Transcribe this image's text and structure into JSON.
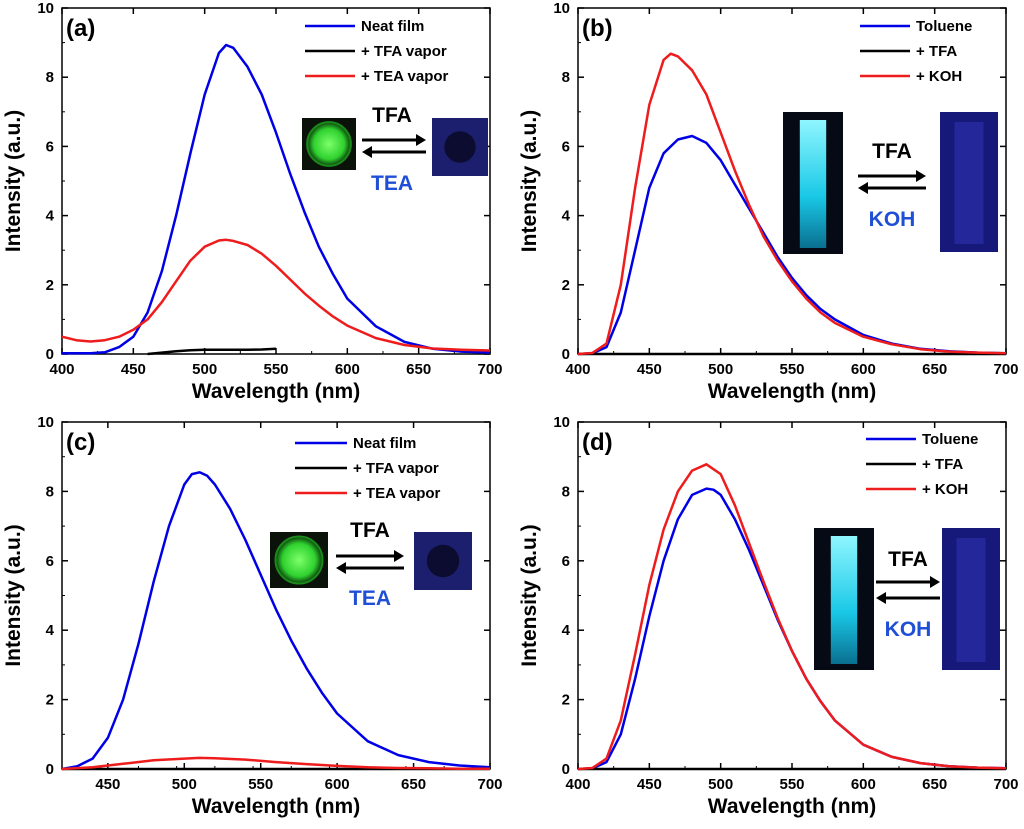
{
  "chart_data": [
    {
      "panel": "(a)",
      "type": "line",
      "xlabel": "Wavelength (nm)",
      "ylabel": "Intensity (a.u.)",
      "xlim": [
        400,
        700
      ],
      "ylim": [
        0,
        10
      ],
      "xticks": [
        400,
        450,
        500,
        550,
        600,
        650,
        700
      ],
      "yticks": [
        0,
        2,
        4,
        6,
        8,
        10
      ],
      "legend_position": "top-right",
      "series": [
        {
          "name": "Neat film",
          "color": "#0000e6",
          "x": [
            400,
            420,
            430,
            440,
            450,
            460,
            470,
            480,
            490,
            500,
            510,
            515,
            520,
            530,
            540,
            550,
            560,
            570,
            580,
            590,
            600,
            620,
            640,
            660,
            680,
            700
          ],
          "y": [
            0.02,
            0.02,
            0.05,
            0.2,
            0.5,
            1.2,
            2.4,
            4.0,
            5.8,
            7.5,
            8.7,
            8.93,
            8.85,
            8.3,
            7.5,
            6.4,
            5.2,
            4.1,
            3.1,
            2.3,
            1.6,
            0.8,
            0.35,
            0.15,
            0.07,
            0.04
          ]
        },
        {
          "name": "+ TFA vapor",
          "color": "#000000",
          "x": [
            460,
            470,
            480,
            490,
            500,
            510,
            520,
            530,
            540,
            550
          ],
          "y": [
            0.0,
            0.04,
            0.08,
            0.11,
            0.12,
            0.12,
            0.12,
            0.12,
            0.13,
            0.15
          ]
        },
        {
          "name": "+ TEA vapor",
          "color": "#ee1c1c",
          "x": [
            400,
            410,
            420,
            430,
            440,
            450,
            460,
            470,
            480,
            490,
            500,
            510,
            515,
            520,
            530,
            540,
            550,
            560,
            570,
            580,
            590,
            600,
            620,
            640,
            660,
            680,
            700
          ],
          "y": [
            0.5,
            0.4,
            0.36,
            0.4,
            0.5,
            0.7,
            1.0,
            1.5,
            2.1,
            2.7,
            3.1,
            3.28,
            3.3,
            3.27,
            3.15,
            2.9,
            2.55,
            2.15,
            1.75,
            1.4,
            1.08,
            0.82,
            0.46,
            0.26,
            0.16,
            0.12,
            0.1
          ]
        }
      ],
      "inset": {
        "top_label": "TFA",
        "bottom_label": "TEA"
      }
    },
    {
      "panel": "(b)",
      "type": "line",
      "xlabel": "Wavelength (nm)",
      "ylabel": "Intensity (a.u.)",
      "xlim": [
        400,
        700
      ],
      "ylim": [
        0,
        10
      ],
      "xticks": [
        400,
        450,
        500,
        550,
        600,
        650,
        700
      ],
      "yticks": [
        0,
        2,
        4,
        6,
        8,
        10
      ],
      "legend_position": "top-right",
      "series": [
        {
          "name": "Toluene",
          "color": "#0000e6",
          "x": [
            400,
            410,
            420,
            430,
            440,
            450,
            460,
            470,
            480,
            490,
            500,
            510,
            520,
            530,
            540,
            550,
            560,
            570,
            580,
            600,
            620,
            640,
            660,
            680,
            700
          ],
          "y": [
            0.0,
            0.02,
            0.2,
            1.2,
            3.0,
            4.8,
            5.8,
            6.2,
            6.3,
            6.1,
            5.6,
            4.9,
            4.2,
            3.5,
            2.8,
            2.2,
            1.7,
            1.3,
            1.0,
            0.55,
            0.3,
            0.15,
            0.08,
            0.04,
            0.02
          ]
        },
        {
          "name": "+ TFA",
          "color": "#000000",
          "x": [
            400,
            700
          ],
          "y": [
            0.0,
            0.0
          ]
        },
        {
          "name": "+ KOH",
          "color": "#ee1c1c",
          "x": [
            400,
            410,
            420,
            430,
            440,
            450,
            460,
            465,
            470,
            480,
            490,
            500,
            510,
            520,
            530,
            540,
            550,
            560,
            570,
            580,
            600,
            620,
            640,
            660,
            680,
            700
          ],
          "y": [
            0.0,
            0.03,
            0.3,
            2.0,
            4.8,
            7.2,
            8.5,
            8.68,
            8.6,
            8.2,
            7.5,
            6.4,
            5.3,
            4.3,
            3.4,
            2.7,
            2.1,
            1.6,
            1.2,
            0.9,
            0.5,
            0.28,
            0.14,
            0.07,
            0.04,
            0.02
          ]
        }
      ],
      "inset": {
        "top_label": "TFA",
        "bottom_label": "KOH"
      }
    },
    {
      "panel": "(c)",
      "type": "line",
      "xlabel": "Wavelength (nm)",
      "ylabel": "Intensity (a.u.)",
      "xlim": [
        420,
        700
      ],
      "ylim": [
        0,
        10
      ],
      "xticks": [
        450,
        500,
        550,
        600,
        650,
        700
      ],
      "yticks": [
        0,
        2,
        4,
        6,
        8,
        10
      ],
      "legend_position": "top-right",
      "series": [
        {
          "name": "Neat film",
          "color": "#0000e6",
          "x": [
            420,
            430,
            440,
            450,
            460,
            470,
            480,
            490,
            500,
            505,
            510,
            515,
            520,
            530,
            540,
            550,
            560,
            570,
            580,
            590,
            600,
            620,
            640,
            660,
            680,
            700
          ],
          "y": [
            0.0,
            0.08,
            0.3,
            0.9,
            2.0,
            3.6,
            5.4,
            7.0,
            8.2,
            8.5,
            8.55,
            8.45,
            8.2,
            7.5,
            6.6,
            5.6,
            4.6,
            3.7,
            2.9,
            2.2,
            1.6,
            0.8,
            0.4,
            0.2,
            0.1,
            0.05
          ]
        },
        {
          "name": "+ TFA vapor",
          "color": "#000000",
          "x": [
            420,
            700
          ],
          "y": [
            0.0,
            0.0
          ]
        },
        {
          "name": "+ TEA vapor",
          "color": "#ee1c1c",
          "x": [
            420,
            440,
            460,
            480,
            500,
            510,
            520,
            540,
            560,
            580,
            600,
            620,
            640,
            660,
            680,
            700
          ],
          "y": [
            0.0,
            0.05,
            0.15,
            0.25,
            0.3,
            0.32,
            0.31,
            0.27,
            0.2,
            0.14,
            0.09,
            0.05,
            0.03,
            0.02,
            0.01,
            0.01
          ]
        }
      ],
      "inset": {
        "top_label": "TFA",
        "bottom_label": "TEA"
      }
    },
    {
      "panel": "(d)",
      "type": "line",
      "xlabel": "Wavelength (nm)",
      "ylabel": "Intensity (a.u.)",
      "xlim": [
        400,
        700
      ],
      "ylim": [
        0,
        10
      ],
      "xticks": [
        400,
        450,
        500,
        550,
        600,
        650,
        700
      ],
      "yticks": [
        0,
        2,
        4,
        6,
        8,
        10
      ],
      "legend_position": "top-right",
      "series": [
        {
          "name": "Toluene",
          "color": "#0000e6",
          "x": [
            400,
            410,
            420,
            430,
            440,
            450,
            460,
            470,
            480,
            490,
            495,
            500,
            510,
            520,
            530,
            540,
            550,
            560,
            570,
            580,
            600,
            620,
            640,
            660,
            680,
            700
          ],
          "y": [
            0.0,
            0.02,
            0.2,
            1.0,
            2.6,
            4.4,
            6.0,
            7.2,
            7.9,
            8.08,
            8.05,
            7.9,
            7.2,
            6.3,
            5.3,
            4.3,
            3.4,
            2.6,
            1.95,
            1.4,
            0.7,
            0.35,
            0.17,
            0.08,
            0.04,
            0.02
          ]
        },
        {
          "name": "+ TFA",
          "color": "#000000",
          "x": [
            400,
            700
          ],
          "y": [
            0.0,
            0.0
          ]
        },
        {
          "name": "+ KOH",
          "color": "#ee1c1c",
          "x": [
            400,
            410,
            420,
            430,
            440,
            450,
            460,
            470,
            480,
            490,
            500,
            510,
            520,
            530,
            540,
            550,
            560,
            570,
            580,
            600,
            620,
            640,
            660,
            680,
            700
          ],
          "y": [
            0.0,
            0.03,
            0.3,
            1.4,
            3.3,
            5.3,
            6.9,
            8.0,
            8.6,
            8.78,
            8.5,
            7.6,
            6.5,
            5.4,
            4.35,
            3.4,
            2.6,
            1.95,
            1.4,
            0.7,
            0.35,
            0.17,
            0.08,
            0.04,
            0.02
          ]
        }
      ],
      "inset": {
        "top_label": "TFA",
        "bottom_label": "KOH"
      }
    }
  ]
}
